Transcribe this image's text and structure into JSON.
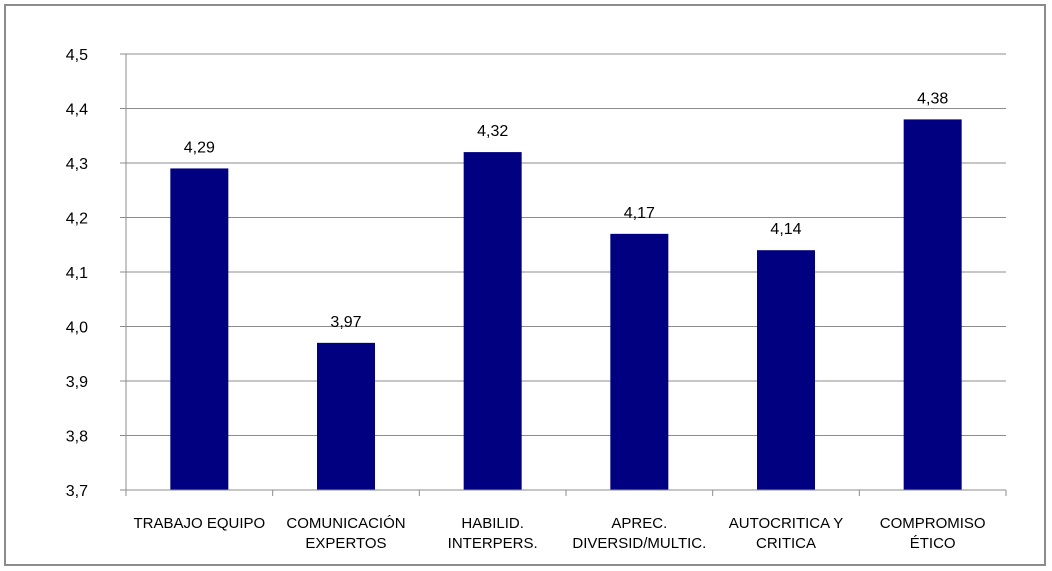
{
  "chart_data": {
    "type": "bar",
    "title": "",
    "xlabel": "",
    "ylabel": "",
    "categories": [
      [
        "TRABAJO EQUIPO"
      ],
      [
        "COMUNICACIÓN",
        "EXPERTOS"
      ],
      [
        "HABILID.",
        "INTERPERS."
      ],
      [
        "APREC.",
        "DIVERSID/MULTIC."
      ],
      [
        "AUTOCRITICA Y",
        "CRITICA"
      ],
      [
        "COMPROMISO",
        "ÉTICO"
      ]
    ],
    "values": [
      4.29,
      3.97,
      4.32,
      4.17,
      4.14,
      4.38
    ],
    "data_labels": [
      "4,29",
      "3,97",
      "4,32",
      "4,17",
      "4,14",
      "4,38"
    ],
    "ylim": [
      3.7,
      4.5
    ],
    "yticks": [
      3.7,
      3.8,
      3.9,
      4.0,
      4.1,
      4.2,
      4.3,
      4.4,
      4.5
    ],
    "ytick_labels": [
      "3,7",
      "3,8",
      "3,9",
      "4,0",
      "4,1",
      "4,2",
      "4,3",
      "4,4",
      "4,5"
    ],
    "grid": true,
    "legend": "none",
    "colors": {
      "bar": "#000080",
      "grid": "#8c8c8c",
      "axis": "#8c8c8c",
      "frame": "#8c8c8c"
    }
  }
}
